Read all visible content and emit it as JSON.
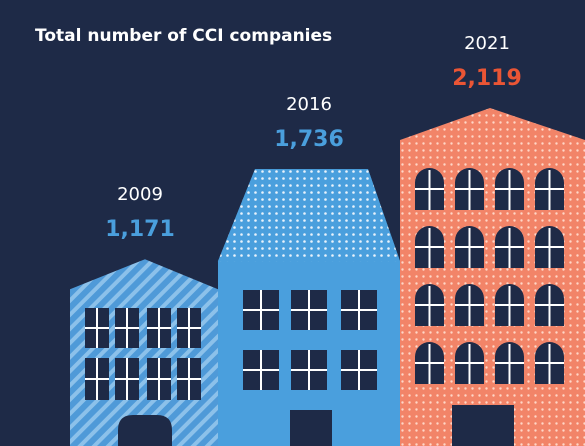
{
  "chart_data": {
    "type": "bar",
    "title": "Total number of CCI companies",
    "categories": [
      "2009",
      "2016",
      "2021"
    ],
    "values": [
      1171,
      1736,
      2119
    ],
    "value_labels": [
      "1,171",
      "1,736",
      "2,119"
    ],
    "colors": [
      "#4f9ad8",
      "#4a9fdd",
      "#f28468"
    ],
    "label_colors": [
      "#4a9fdd",
      "#4a9fdd",
      "#ea5535"
    ]
  }
}
